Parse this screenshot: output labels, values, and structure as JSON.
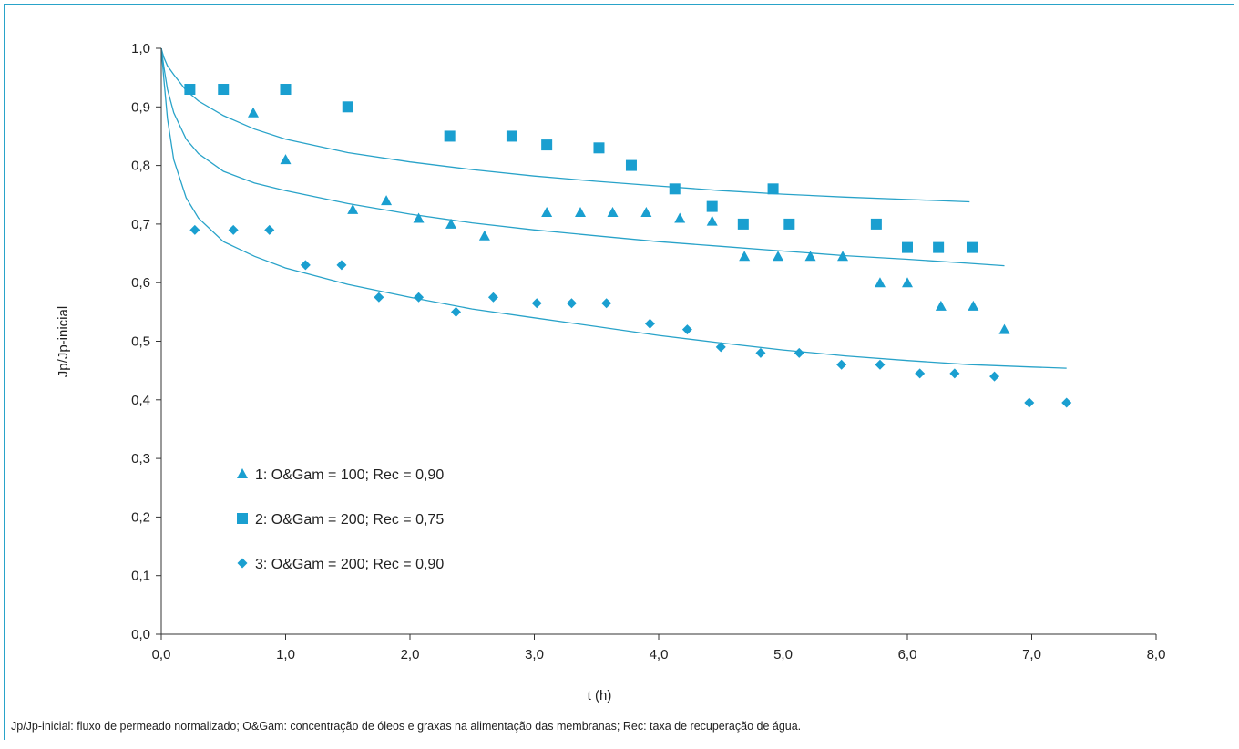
{
  "footnote": "Jp/Jp-inicial: fluxo de permeado normalizado; O&Gam: concentração de óleos e graxas na alimentação das membranas; Rec: taxa de recuperação de água.",
  "colors": {
    "marker": "#1a9fd0",
    "curve": "#29a3c9",
    "axis": "#333333",
    "frame": "#29a3c9"
  },
  "chart_data": {
    "type": "scatter",
    "title": "",
    "xlabel": "t (h)",
    "ylabel": "Jp/Jp-inicial",
    "xlim": [
      0,
      8
    ],
    "ylim": [
      0,
      1
    ],
    "xticks": [
      0,
      1,
      2,
      3,
      4,
      5,
      6,
      7,
      8
    ],
    "xtick_labels": [
      "0,0",
      "1,0",
      "2,0",
      "3,0",
      "4,0",
      "5,0",
      "6,0",
      "7,0",
      "8,0"
    ],
    "yticks": [
      0,
      0.1,
      0.2,
      0.3,
      0.4,
      0.5,
      0.6,
      0.7,
      0.8,
      0.9,
      1.0
    ],
    "ytick_labels": [
      "0,0",
      "0,1",
      "0,2",
      "0,3",
      "0,4",
      "0,5",
      "0,6",
      "0,7",
      "0,8",
      "0,9",
      "1,0"
    ],
    "grid": false,
    "legend_position": "lower-left",
    "series": [
      {
        "name": "1: O&Gam = 100; Rec = 0,90",
        "marker": "triangle",
        "points": [
          [
            0.74,
            0.89
          ],
          [
            1.0,
            0.81
          ],
          [
            1.54,
            0.725
          ],
          [
            1.81,
            0.74
          ],
          [
            2.07,
            0.71
          ],
          [
            2.33,
            0.7
          ],
          [
            2.6,
            0.68
          ],
          [
            3.1,
            0.72
          ],
          [
            3.37,
            0.72
          ],
          [
            3.63,
            0.72
          ],
          [
            3.9,
            0.72
          ],
          [
            4.17,
            0.71
          ],
          [
            4.43,
            0.705
          ],
          [
            4.69,
            0.645
          ],
          [
            4.96,
            0.645
          ],
          [
            5.22,
            0.645
          ],
          [
            5.48,
            0.645
          ],
          [
            5.78,
            0.6
          ],
          [
            6.0,
            0.6
          ],
          [
            6.27,
            0.56
          ],
          [
            6.53,
            0.56
          ],
          [
            6.78,
            0.52
          ]
        ]
      },
      {
        "name": "2: O&Gam = 200; Rec = 0,75",
        "marker": "square",
        "points": [
          [
            0.23,
            0.93
          ],
          [
            0.5,
            0.93
          ],
          [
            1.0,
            0.93
          ],
          [
            1.5,
            0.9
          ],
          [
            2.32,
            0.85
          ],
          [
            2.82,
            0.85
          ],
          [
            3.1,
            0.835
          ],
          [
            3.52,
            0.83
          ],
          [
            3.78,
            0.8
          ],
          [
            4.13,
            0.76
          ],
          [
            4.43,
            0.73
          ],
          [
            4.68,
            0.7
          ],
          [
            4.92,
            0.76
          ],
          [
            5.05,
            0.7
          ],
          [
            5.75,
            0.7
          ],
          [
            6.0,
            0.66
          ],
          [
            6.25,
            0.66
          ],
          [
            6.52,
            0.66
          ]
        ]
      },
      {
        "name": "3: O&Gam = 200; Rec = 0,90",
        "marker": "diamond",
        "points": [
          [
            0.27,
            0.69
          ],
          [
            0.58,
            0.69
          ],
          [
            0.87,
            0.69
          ],
          [
            1.16,
            0.63
          ],
          [
            1.45,
            0.63
          ],
          [
            1.75,
            0.575
          ],
          [
            2.07,
            0.575
          ],
          [
            2.37,
            0.55
          ],
          [
            2.67,
            0.575
          ],
          [
            3.02,
            0.565
          ],
          [
            3.3,
            0.565
          ],
          [
            3.58,
            0.565
          ],
          [
            3.93,
            0.53
          ],
          [
            4.23,
            0.52
          ],
          [
            4.5,
            0.49
          ],
          [
            4.82,
            0.48
          ],
          [
            5.13,
            0.48
          ],
          [
            5.47,
            0.46
          ],
          [
            5.78,
            0.46
          ],
          [
            6.1,
            0.445
          ],
          [
            6.38,
            0.445
          ],
          [
            6.7,
            0.44
          ],
          [
            6.98,
            0.395
          ],
          [
            7.28,
            0.395
          ]
        ]
      }
    ],
    "fit_curves": [
      {
        "series": "2: O&Gam = 200; Rec = 0,75",
        "points": [
          [
            0.0,
            1.0
          ],
          [
            0.02,
            0.985
          ],
          [
            0.05,
            0.97
          ],
          [
            0.1,
            0.955
          ],
          [
            0.2,
            0.928
          ],
          [
            0.3,
            0.91
          ],
          [
            0.5,
            0.885
          ],
          [
            0.75,
            0.862
          ],
          [
            1.0,
            0.845
          ],
          [
            1.5,
            0.822
          ],
          [
            2.0,
            0.806
          ],
          [
            2.5,
            0.793
          ],
          [
            3.0,
            0.782
          ],
          [
            3.5,
            0.773
          ],
          [
            4.0,
            0.765
          ],
          [
            4.5,
            0.757
          ],
          [
            5.0,
            0.751
          ],
          [
            5.5,
            0.746
          ],
          [
            6.0,
            0.742
          ],
          [
            6.5,
            0.738
          ]
        ]
      },
      {
        "series": "1: O&Gam = 100; Rec = 0,90",
        "points": [
          [
            0.0,
            1.0
          ],
          [
            0.02,
            0.97
          ],
          [
            0.05,
            0.93
          ],
          [
            0.1,
            0.89
          ],
          [
            0.2,
            0.845
          ],
          [
            0.3,
            0.82
          ],
          [
            0.5,
            0.79
          ],
          [
            0.75,
            0.77
          ],
          [
            1.0,
            0.757
          ],
          [
            1.5,
            0.735
          ],
          [
            2.0,
            0.717
          ],
          [
            2.5,
            0.702
          ],
          [
            3.0,
            0.69
          ],
          [
            3.5,
            0.68
          ],
          [
            4.0,
            0.67
          ],
          [
            4.5,
            0.662
          ],
          [
            5.0,
            0.654
          ],
          [
            5.5,
            0.646
          ],
          [
            6.0,
            0.64
          ],
          [
            6.5,
            0.633
          ],
          [
            6.78,
            0.629
          ]
        ]
      },
      {
        "series": "3: O&Gam = 200; Rec = 0,90",
        "points": [
          [
            0.0,
            1.0
          ],
          [
            0.02,
            0.95
          ],
          [
            0.05,
            0.88
          ],
          [
            0.1,
            0.81
          ],
          [
            0.2,
            0.745
          ],
          [
            0.3,
            0.71
          ],
          [
            0.5,
            0.67
          ],
          [
            0.75,
            0.645
          ],
          [
            1.0,
            0.625
          ],
          [
            1.5,
            0.597
          ],
          [
            2.0,
            0.575
          ],
          [
            2.5,
            0.555
          ],
          [
            3.0,
            0.54
          ],
          [
            3.5,
            0.525
          ],
          [
            4.0,
            0.51
          ],
          [
            4.5,
            0.497
          ],
          [
            5.0,
            0.485
          ],
          [
            5.5,
            0.475
          ],
          [
            6.0,
            0.467
          ],
          [
            6.5,
            0.46
          ],
          [
            7.0,
            0.456
          ],
          [
            7.28,
            0.454
          ]
        ]
      }
    ]
  }
}
